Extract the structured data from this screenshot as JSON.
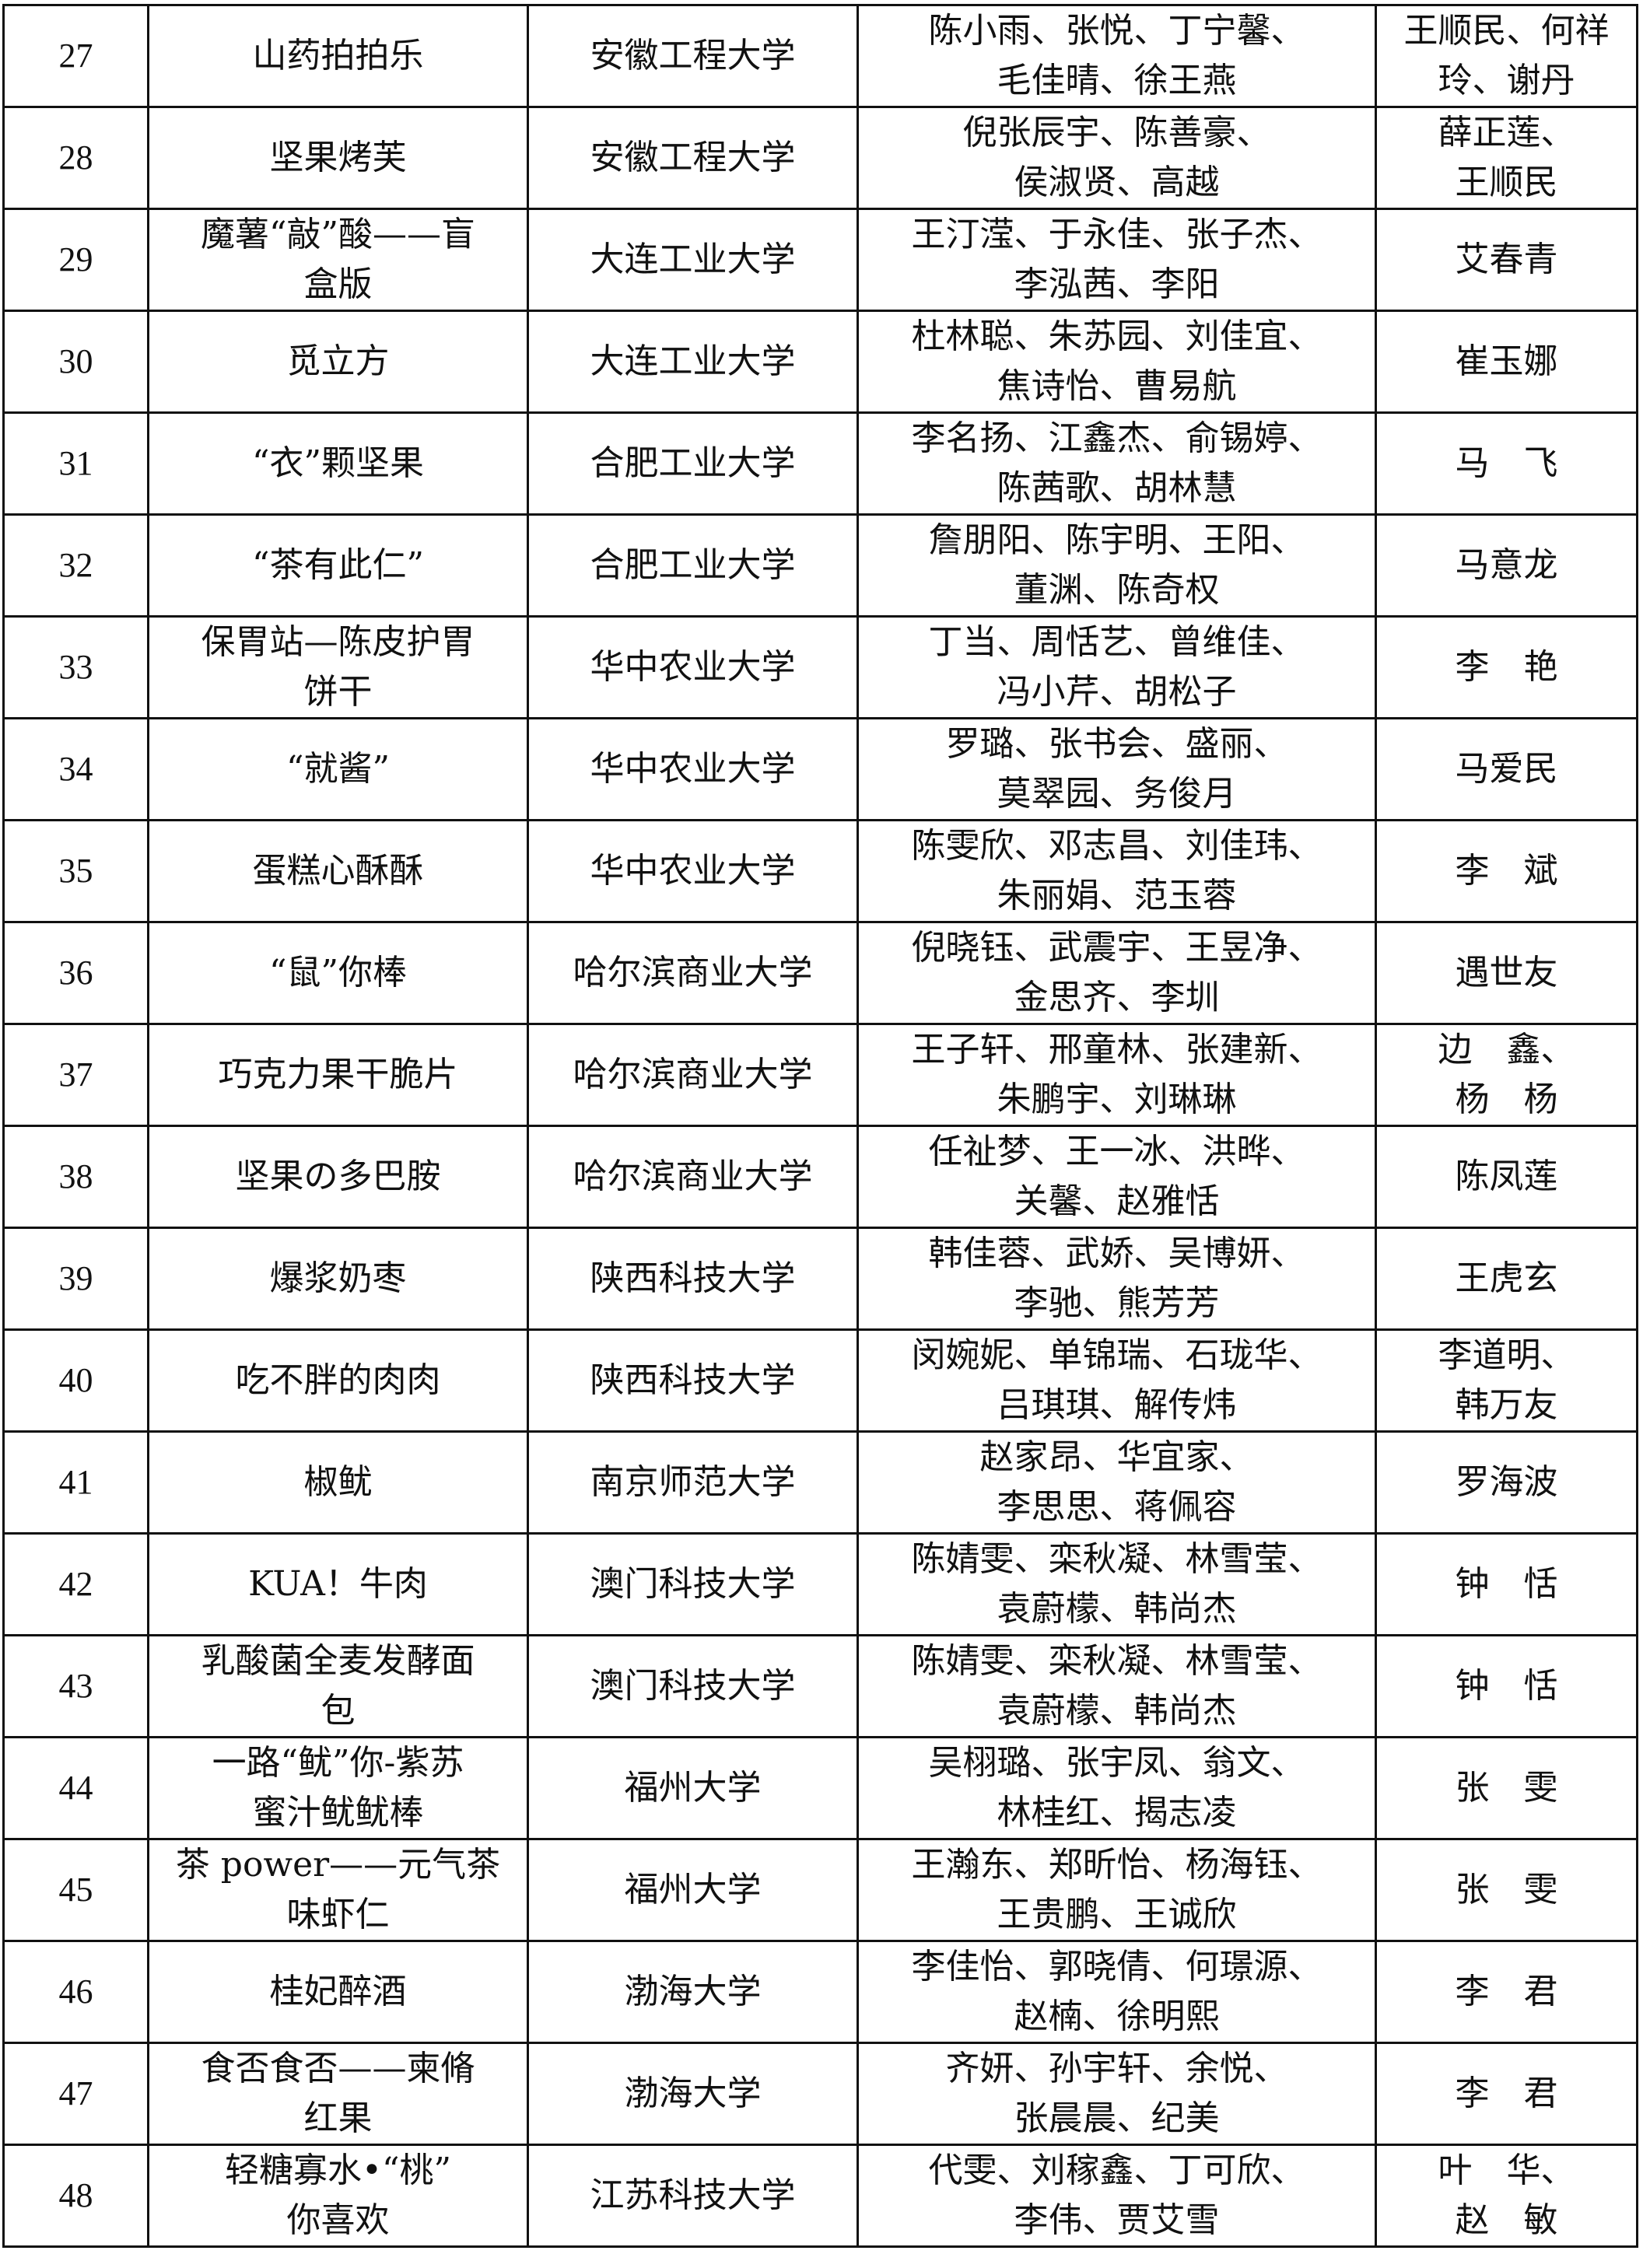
{
  "rows": [
    {
      "no": "27",
      "work": [
        "山药拍拍乐"
      ],
      "school": "安徽工程大学",
      "members": [
        "陈小雨、张悦、丁宁馨、",
        "毛佳晴、徐王燕"
      ],
      "advisor": [
        "王顺民、何祥",
        "玲、谢丹"
      ]
    },
    {
      "no": "28",
      "work": [
        "坚果烤芙"
      ],
      "school": "安徽工程大学",
      "members": [
        "倪张辰宇、陈善豪、",
        "侯淑贤、高越"
      ],
      "advisor": [
        "薛正莲、",
        "王顺民"
      ]
    },
    {
      "no": "29",
      "work": [
        "魔薯“敲”酸——盲",
        "盒版"
      ],
      "school": "大连工业大学",
      "members": [
        "王汀滢、于永佳、张子杰、",
        "李泓茜、李阳"
      ],
      "advisor": [
        "艾春青"
      ]
    },
    {
      "no": "30",
      "work": [
        "觅立方"
      ],
      "school": "大连工业大学",
      "members": [
        "杜林聪、朱苏园、刘佳宜、",
        "焦诗怡、曹易航"
      ],
      "advisor": [
        "崔玉娜"
      ]
    },
    {
      "no": "31",
      "work": [
        "“衣”颗坚果"
      ],
      "school": "合肥工业大学",
      "members": [
        "李名扬、江鑫杰、俞锡婷、",
        "陈茜歌、胡林慧"
      ],
      "advisor": [
        "马　飞"
      ]
    },
    {
      "no": "32",
      "work": [
        "“茶有此仁”"
      ],
      "school": "合肥工业大学",
      "members": [
        "詹朋阳、陈宇明、王阳、",
        "董渊、陈奇权"
      ],
      "advisor": [
        "马意龙"
      ]
    },
    {
      "no": "33",
      "work": [
        "保胃站—陈皮护胃",
        "饼干"
      ],
      "school": "华中农业大学",
      "members": [
        "丁当、周恬艺、曾维佳、",
        "冯小芹、胡松子"
      ],
      "advisor": [
        "李　艳"
      ]
    },
    {
      "no": "34",
      "work": [
        "“就酱”"
      ],
      "school": "华中农业大学",
      "members": [
        "罗璐、张书会、盛丽、",
        "莫翠园、务俊月"
      ],
      "advisor": [
        "马爱民"
      ]
    },
    {
      "no": "35",
      "work": [
        "蛋糕心酥酥"
      ],
      "school": "华中农业大学",
      "members": [
        "陈雯欣、邓志昌、刘佳玮、",
        "朱丽娟、范玉蓉"
      ],
      "advisor": [
        "李　斌"
      ]
    },
    {
      "no": "36",
      "work": [
        "“鼠”你棒"
      ],
      "school": "哈尔滨商业大学",
      "members": [
        "倪晓钰、武震宇、王昱净、",
        "金思齐、李圳"
      ],
      "advisor": [
        "遇世友"
      ]
    },
    {
      "no": "37",
      "work": [
        "巧克力果干脆片"
      ],
      "school": "哈尔滨商业大学",
      "members": [
        "王子轩、邢童林、张建新、",
        "朱鹏宇、刘琳琳"
      ],
      "advisor": [
        "边　鑫、",
        "杨　杨"
      ]
    },
    {
      "no": "38",
      "work": [
        "坚果の多巴胺"
      ],
      "school": "哈尔滨商业大学",
      "members": [
        "任祉梦、王一冰、洪晔、",
        "关馨、赵雅恬"
      ],
      "advisor": [
        "陈凤莲"
      ]
    },
    {
      "no": "39",
      "work": [
        "爆浆奶枣"
      ],
      "school": "陕西科技大学",
      "members": [
        "韩佳蓉、武娇、吴博妍、",
        "李驰、熊芳芳"
      ],
      "advisor": [
        "王虎玄"
      ]
    },
    {
      "no": "40",
      "work": [
        "吃不胖的肉肉"
      ],
      "school": "陕西科技大学",
      "members": [
        "闵婉妮、单锦瑞、石珑华、",
        "吕琪琪、解传炜"
      ],
      "advisor": [
        "李道明、",
        "韩万友"
      ]
    },
    {
      "no": "41",
      "work": [
        "椒鱿"
      ],
      "school": "南京师范大学",
      "members": [
        "赵家昂、华宜家、",
        "李思思、蒋佩容"
      ],
      "advisor": [
        "罗海波"
      ]
    },
    {
      "no": "42",
      "work": [
        "KUA！牛肉"
      ],
      "school": "澳门科技大学",
      "members": [
        "陈婧雯、栾秋凝、林雪莹、",
        "袁蔚檬、韩尚杰"
      ],
      "advisor": [
        "钟　恬"
      ]
    },
    {
      "no": "43",
      "work": [
        "乳酸菌全麦发酵面",
        "包"
      ],
      "school": "澳门科技大学",
      "members": [
        "陈婧雯、栾秋凝、林雪莹、",
        "袁蔚檬、韩尚杰"
      ],
      "advisor": [
        "钟　恬"
      ]
    },
    {
      "no": "44",
      "work": [
        "一路“鱿”你-紫苏",
        "蜜汁鱿鱿棒"
      ],
      "school": "福州大学",
      "members": [
        "吴栩璐、张宇凤、翁文、",
        "林桂红、揭志凌"
      ],
      "advisor": [
        "张　雯"
      ]
    },
    {
      "no": "45",
      "work": [
        "茶 power——元气茶",
        "味虾仁"
      ],
      "school": "福州大学",
      "members": [
        "王瀚东、郑昕怡、杨海钰、",
        "王贵鹏、王诚欣"
      ],
      "advisor": [
        "张　雯"
      ]
    },
    {
      "no": "46",
      "work": [
        "桂妃醉酒"
      ],
      "school": "渤海大学",
      "members": [
        "李佳怡、郭晓倩、何璟源、",
        "赵楠、徐明熙"
      ],
      "advisor": [
        "李　君"
      ]
    },
    {
      "no": "47",
      "work": [
        "食否食否——柬脩",
        "红果"
      ],
      "school": "渤海大学",
      "members": [
        "齐妍、孙宇轩、余悦、",
        "张晨晨、纪美"
      ],
      "advisor": [
        "李　君"
      ]
    },
    {
      "no": "48",
      "work": [
        "轻糖寡水•“桃”",
        "你喜欢"
      ],
      "school": "江苏科技大学",
      "members": [
        "代雯、刘稼鑫、丁可欣、",
        "李伟、贾艾雪"
      ],
      "advisor": [
        "叶　华、",
        "赵　敏"
      ]
    }
  ]
}
